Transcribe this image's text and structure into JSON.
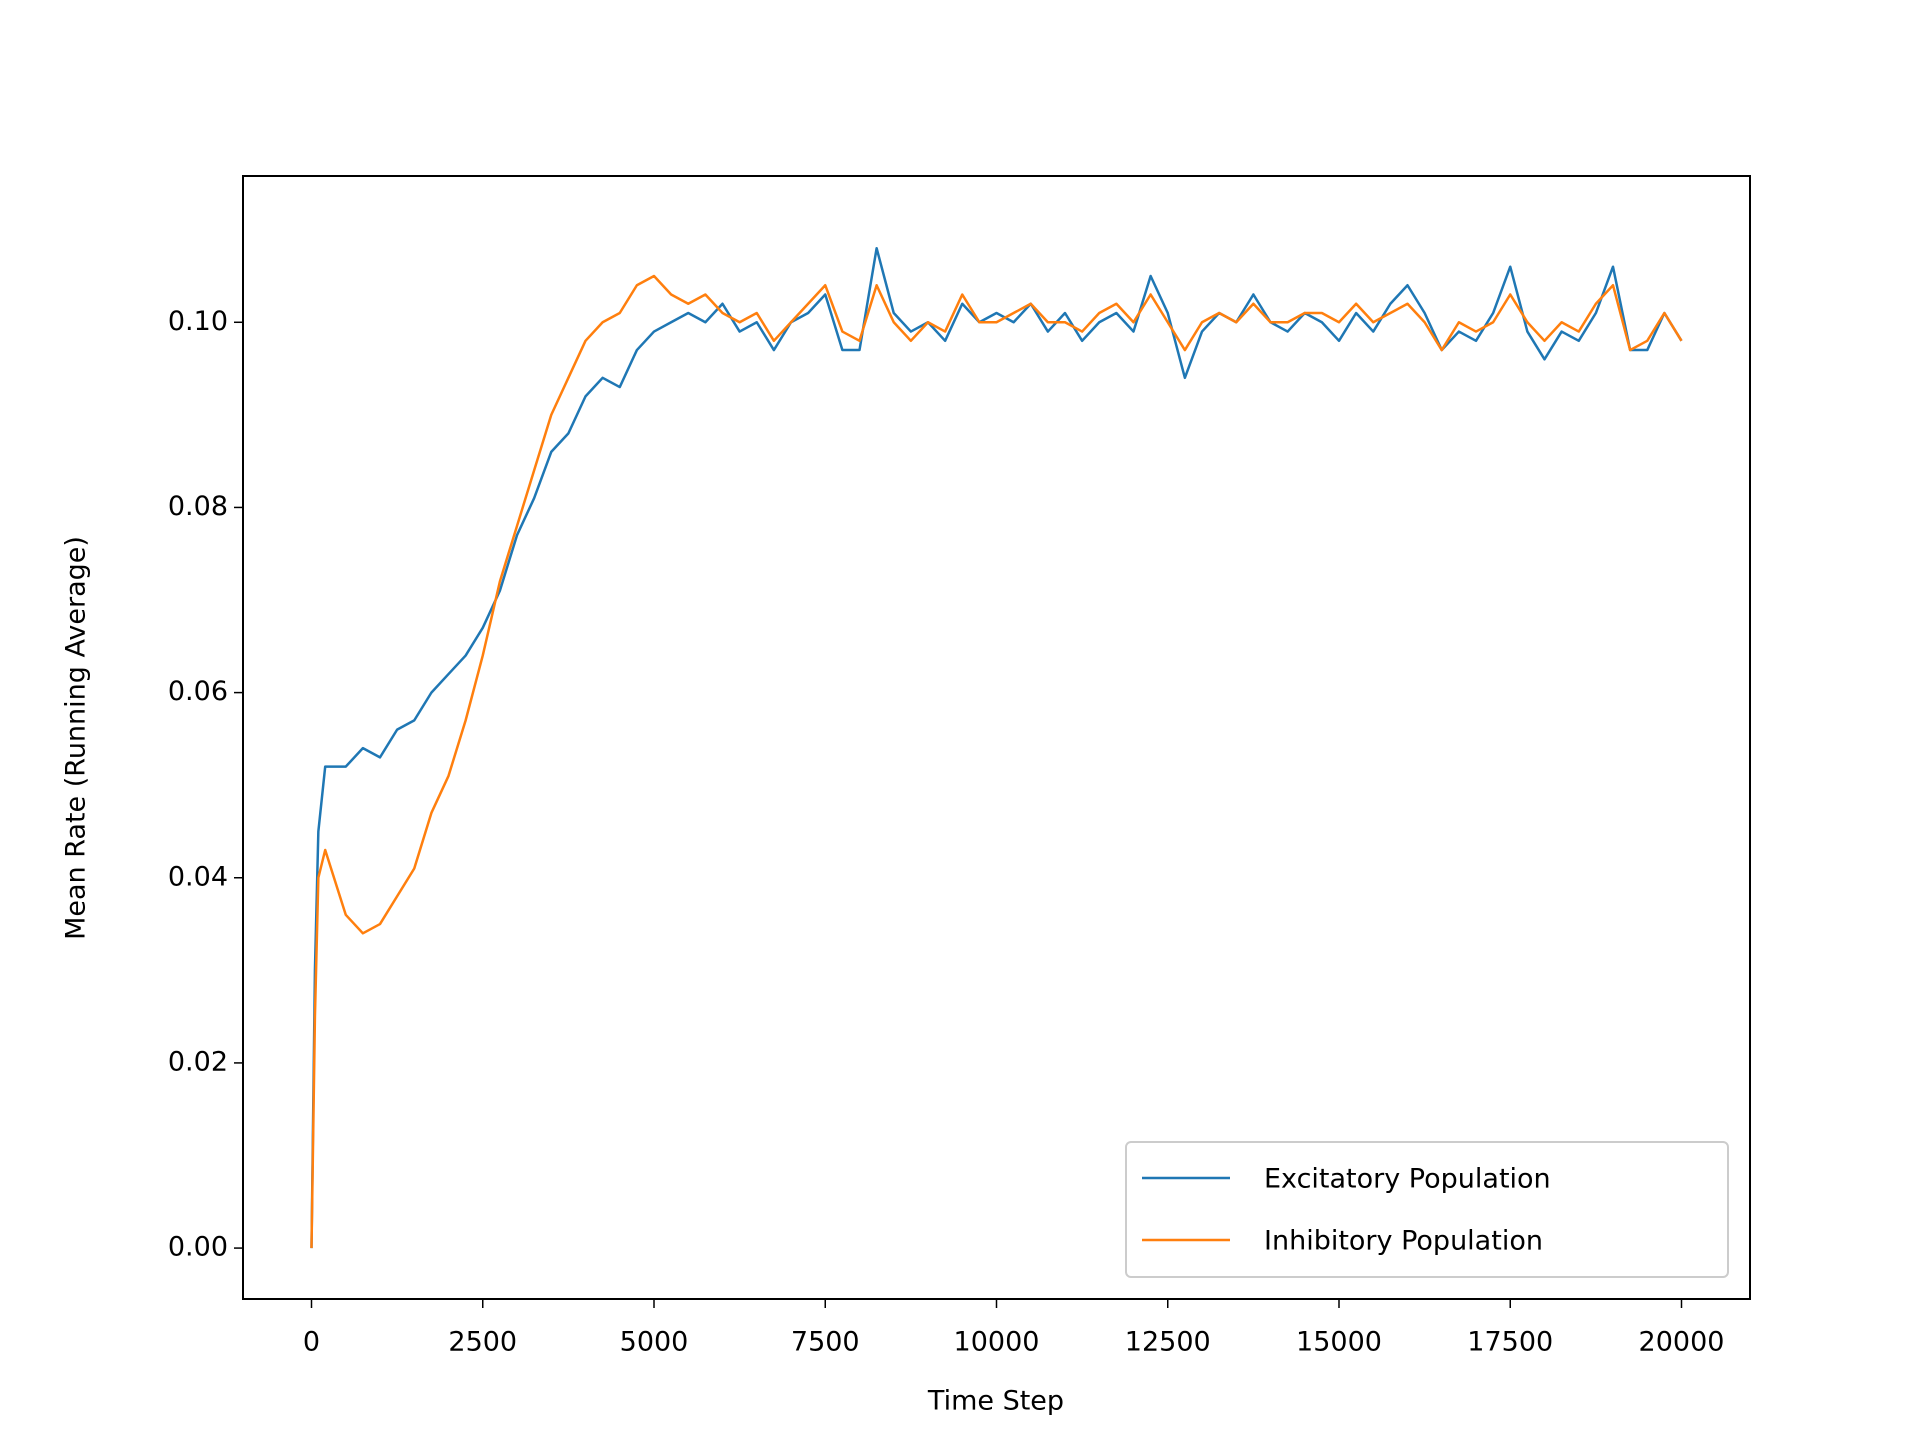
{
  "chart_data": {
    "type": "line",
    "xlabel": "Time Step",
    "ylabel": "Mean Rate (Running Average)",
    "x": [
      0,
      50,
      100,
      200,
      500,
      750,
      1000,
      1250,
      1500,
      1750,
      2000,
      2250,
      2500,
      2750,
      3000,
      3250,
      3500,
      3750,
      4000,
      4250,
      4500,
      4750,
      5000,
      5250,
      5500,
      5750,
      6000,
      6250,
      6500,
      6750,
      7000,
      7250,
      7500,
      7750,
      8000,
      8250,
      8500,
      8750,
      9000,
      9250,
      9500,
      9750,
      10000,
      10250,
      10500,
      10750,
      11000,
      11250,
      11500,
      11750,
      12000,
      12250,
      12500,
      12750,
      13000,
      13250,
      13500,
      13750,
      14000,
      14250,
      14500,
      14750,
      15000,
      15250,
      15500,
      15750,
      16000,
      16250,
      16500,
      16750,
      17000,
      17250,
      17500,
      17750,
      18000,
      18250,
      18500,
      18750,
      19000,
      19250,
      19500,
      19750,
      20000
    ],
    "series": [
      {
        "name": "Excitatory Population",
        "color": "#1f77b4",
        "values": [
          0,
          0.03,
          0.045,
          0.052,
          0.052,
          0.054,
          0.053,
          0.056,
          0.057,
          0.06,
          0.062,
          0.064,
          0.067,
          0.071,
          0.077,
          0.081,
          0.086,
          0.088,
          0.092,
          0.094,
          0.093,
          0.097,
          0.099,
          0.1,
          0.101,
          0.1,
          0.102,
          0.099,
          0.1,
          0.097,
          0.1,
          0.101,
          0.103,
          0.097,
          0.097,
          0.108,
          0.101,
          0.099,
          0.1,
          0.098,
          0.102,
          0.1,
          0.101,
          0.1,
          0.102,
          0.099,
          0.101,
          0.098,
          0.1,
          0.101,
          0.099,
          0.105,
          0.101,
          0.094,
          0.099,
          0.101,
          0.1,
          0.103,
          0.1,
          0.099,
          0.101,
          0.1,
          0.098,
          0.101,
          0.099,
          0.102,
          0.104,
          0.101,
          0.097,
          0.099,
          0.098,
          0.101,
          0.106,
          0.099,
          0.096,
          0.099,
          0.098,
          0.101,
          0.106,
          0.097,
          0.097,
          0.101,
          0.098
        ]
      },
      {
        "name": "Inhibitory Population",
        "color": "#ff7f0e",
        "values": [
          0,
          0.025,
          0.04,
          0.043,
          0.036,
          0.034,
          0.035,
          0.038,
          0.041,
          0.047,
          0.051,
          0.057,
          0.064,
          0.072,
          0.078,
          0.084,
          0.09,
          0.094,
          0.098,
          0.1,
          0.101,
          0.104,
          0.105,
          0.103,
          0.102,
          0.103,
          0.101,
          0.1,
          0.101,
          0.098,
          0.1,
          0.102,
          0.104,
          0.099,
          0.098,
          0.104,
          0.1,
          0.098,
          0.1,
          0.099,
          0.103,
          0.1,
          0.1,
          0.101,
          0.102,
          0.1,
          0.1,
          0.099,
          0.101,
          0.102,
          0.1,
          0.103,
          0.1,
          0.097,
          0.1,
          0.101,
          0.1,
          0.102,
          0.1,
          0.1,
          0.101,
          0.101,
          0.1,
          0.102,
          0.1,
          0.101,
          0.102,
          0.1,
          0.097,
          0.1,
          0.099,
          0.1,
          0.103,
          0.1,
          0.098,
          0.1,
          0.099,
          0.102,
          0.104,
          0.097,
          0.098,
          0.101,
          0.098
        ]
      }
    ],
    "xlim": [
      -1000,
      21000
    ],
    "ylim": [
      -0.0055,
      0.1158
    ],
    "xticks": [
      0,
      2500,
      5000,
      7500,
      10000,
      12500,
      15000,
      17500,
      20000
    ],
    "yticks": [
      {
        "value": 0,
        "label": "0.00"
      },
      {
        "value": 0.02,
        "label": "0.02"
      },
      {
        "value": 0.04,
        "label": "0.04"
      },
      {
        "value": 0.06,
        "label": "0.06"
      },
      {
        "value": 0.08,
        "label": "0.08"
      },
      {
        "value": 0.1,
        "label": "0.10"
      }
    ],
    "legend": "lower right"
  }
}
